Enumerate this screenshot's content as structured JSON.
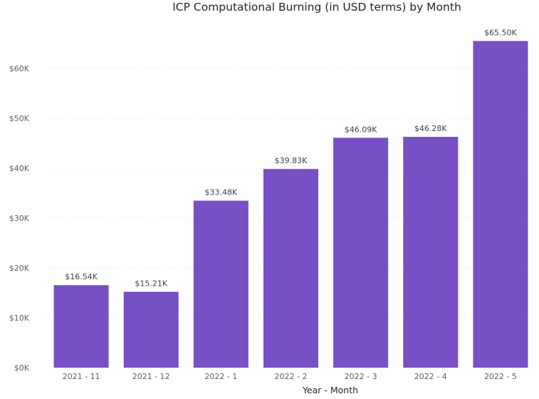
{
  "chart_data": {
    "type": "bar",
    "title": "ICP Computational Burning (in USD terms) by Month",
    "xlabel": "Year - Month",
    "ylabel": "",
    "categories": [
      "2021 - 11",
      "2021 - 12",
      "2022 - 1",
      "2022 - 2",
      "2022 - 3",
      "2022 - 4",
      "2022 - 5"
    ],
    "values": [
      16540,
      15210,
      33480,
      39830,
      46090,
      46280,
      65500
    ],
    "data_labels": [
      "$16.54K",
      "$15.21K",
      "$33.48K",
      "$39.83K",
      "$46.09K",
      "$46.28K",
      "$65.50K"
    ],
    "yticks": [
      0,
      10000,
      20000,
      30000,
      40000,
      50000,
      60000
    ],
    "ytick_labels": [
      "$0K",
      "$10K",
      "$20K",
      "$30K",
      "$40K",
      "$50K",
      "$60K"
    ],
    "ylim": [
      0,
      70000
    ],
    "grid": true,
    "bar_color": "#7650c4"
  }
}
